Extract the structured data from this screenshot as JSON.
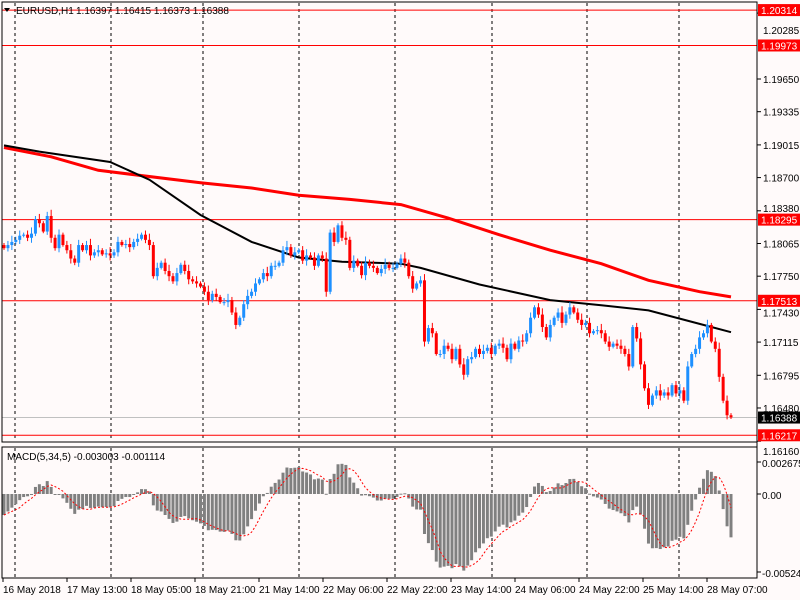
{
  "header": {
    "symbol": "EURUSD,H1",
    "ohlc": "1.16397 1.16415 1.16373 1.16388",
    "macd_label": "MACD(5,34,5) -0.003003 -0.001114"
  },
  "chart_data": {
    "type": "candlestick",
    "title": "EURUSD,H1",
    "colors": {
      "bull": "#1e90ff",
      "bear": "#ff0000",
      "ma_fast": "#000000",
      "ma_slow": "#ff0000",
      "level": "#ff0000",
      "bid": "#c0c0c0",
      "histogram": "#808080",
      "signal": "#ff0000"
    },
    "price_axis_ticks": [
      "1.20285",
      "1.19650",
      "1.19335",
      "1.19015",
      "1.18700",
      "1.18380",
      "1.18065",
      "1.17750",
      "1.17430",
      "1.17115",
      "1.16795",
      "1.16480",
      "1.16160"
    ],
    "ylim": [
      1.1612,
      1.2038
    ],
    "levels": [
      {
        "label": "1.20314",
        "value": 1.20314
      },
      {
        "label": "1.19973",
        "value": 1.19973
      },
      {
        "label": "1.18295",
        "value": 1.18295
      },
      {
        "label": "1.17513",
        "value": 1.17513
      },
      {
        "label": "1.16217",
        "value": 1.16217
      }
    ],
    "bid": {
      "label": "1.16388",
      "value": 1.16388
    },
    "time_labels": [
      "16 May 2018",
      "17 May 13:00",
      "18 May 05:00",
      "18 May 21:00",
      "21 May 14:00",
      "22 May 06:00",
      "22 May 22:00",
      "23 May 14:00",
      "24 May 06:00",
      "24 May 22:00",
      "25 May 14:00",
      "28 May 07:00"
    ],
    "closes": [
      1.1802,
      1.1805,
      1.1808,
      1.181,
      1.1814,
      1.1815,
      1.1812,
      1.1816,
      1.183,
      1.1826,
      1.1818,
      1.1833,
      1.1812,
      1.1802,
      1.1815,
      1.1805,
      1.18,
      1.1792,
      1.1788,
      1.1805,
      1.18,
      1.1805,
      1.1795,
      1.1798,
      1.18,
      1.1796,
      1.1797,
      1.1795,
      1.1798,
      1.1808,
      1.1805,
      1.1806,
      1.1803,
      1.1808,
      1.1811,
      1.1815,
      1.181,
      1.1805,
      1.1775,
      1.1783,
      1.1788,
      1.178,
      1.1775,
      1.177,
      1.1778,
      1.1786,
      1.178,
      1.1772,
      1.177,
      1.1768,
      1.1765,
      1.176,
      1.1752,
      1.1758,
      1.1755,
      1.175,
      1.175,
      1.1752,
      1.174,
      1.1728,
      1.1735,
      1.1748,
      1.1756,
      1.176,
      1.1768,
      1.1772,
      1.1778,
      1.1775,
      1.1785,
      1.1785,
      1.1788,
      1.18,
      1.1803,
      1.1795,
      1.1798,
      1.18,
      1.179,
      1.1795,
      1.1793,
      1.1785,
      1.1795,
      1.1792,
      1.176,
      1.1817,
      1.1808,
      1.1824,
      1.1812,
      1.181,
      1.1783,
      1.179,
      1.1785,
      1.1776,
      1.1788,
      1.1785,
      1.1783,
      1.1778,
      1.1782,
      1.1786,
      1.1783,
      1.1783,
      1.1787,
      1.1792,
      1.1788,
      1.1775,
      1.1763,
      1.1768,
      1.1771,
      1.1712,
      1.1725,
      1.172,
      1.17,
      1.17,
      1.1708,
      1.1705,
      1.1695,
      1.1705,
      1.169,
      1.168,
      1.1695,
      1.1697,
      1.1705,
      1.17,
      1.1703,
      1.1706,
      1.17,
      1.1708,
      1.171,
      1.1706,
      1.1695,
      1.171,
      1.1705,
      1.1713,
      1.1712,
      1.172,
      1.1735,
      1.1745,
      1.1738,
      1.1726,
      1.1716,
      1.1728,
      1.1735,
      1.174,
      1.173,
      1.1738,
      1.1745,
      1.174,
      1.1733,
      1.1728,
      1.173,
      1.172,
      1.1722,
      1.1723,
      1.172,
      1.1712,
      1.1707,
      1.171,
      1.1708,
      1.1705,
      1.17,
      1.1688,
      1.1726,
      1.1715,
      1.169,
      1.1667,
      1.1651,
      1.166,
      1.1665,
      1.166,
      1.1663,
      1.166,
      1.167,
      1.1662,
      1.1665,
      1.1655,
      1.1688,
      1.17,
      1.1705,
      1.1716,
      1.172,
      1.1728,
      1.1712,
      1.1705,
      1.1678,
      1.1655,
      1.1641,
      1.1639
    ],
    "ma_fast": [
      [
        0,
        1.1901
      ],
      [
        9,
        1.1895
      ],
      [
        27,
        1.1885
      ],
      [
        37,
        1.1868
      ],
      [
        50,
        1.1834
      ],
      [
        63,
        1.1808
      ],
      [
        75,
        1.1793
      ],
      [
        86,
        1.1789
      ],
      [
        101,
        1.1787
      ],
      [
        106,
        1.1783
      ],
      [
        121,
        1.1767
      ],
      [
        139,
        1.1752
      ],
      [
        152,
        1.1747
      ],
      [
        164,
        1.1742
      ],
      [
        177,
        1.1729
      ],
      [
        185,
        1.1721
      ]
    ],
    "ma_slow": [
      [
        0,
        1.1899
      ],
      [
        12,
        1.189
      ],
      [
        24,
        1.1877
      ],
      [
        50,
        1.1865
      ],
      [
        63,
        1.186
      ],
      [
        75,
        1.1853
      ],
      [
        88,
        1.1849
      ],
      [
        101,
        1.1844
      ],
      [
        113,
        1.1831
      ],
      [
        126,
        1.1815
      ],
      [
        139,
        1.18
      ],
      [
        152,
        1.1787
      ],
      [
        164,
        1.1771
      ],
      [
        177,
        1.176
      ],
      [
        185,
        1.1755
      ]
    ],
    "macd": {
      "params": [
        5,
        34,
        5
      ],
      "axis_ticks": [
        "0.002675",
        "0.00",
        "-0.00524"
      ],
      "ylim": [
        -0.00524,
        0.002675
      ],
      "current_main": -0.003003,
      "current_signal": -0.001114
    }
  }
}
